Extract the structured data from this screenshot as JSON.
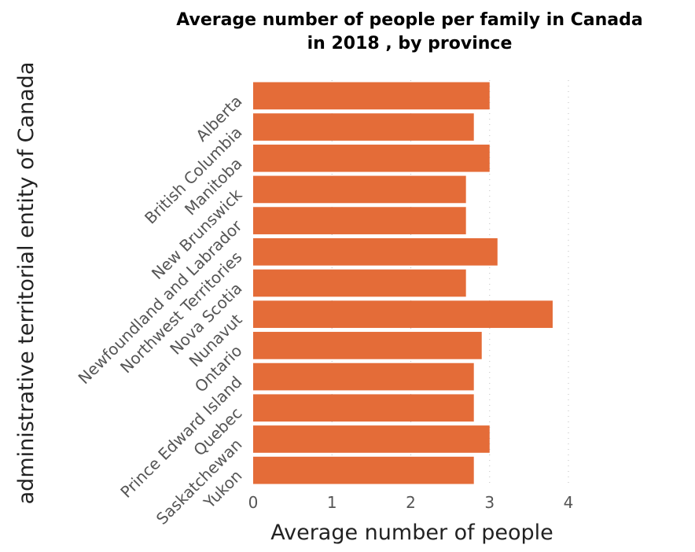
{
  "chart_data": {
    "type": "bar",
    "orientation": "horizontal",
    "title_lines": [
      "Average number of people per family in Canada",
      "in 2018 , by province"
    ],
    "xlabel": "Average number of people",
    "ylabel": "administrative territorial entity of Canada",
    "xlim": [
      0,
      4
    ],
    "xticks": [
      "0",
      "1",
      "2",
      "3",
      "4"
    ],
    "grid": "vertical dotted",
    "bar_color": "#e46c38",
    "categories": [
      "Alberta",
      "British Columbia",
      "Manitoba",
      "New Brunswick",
      "Newfoundland and Labrador",
      "Northwest Territories",
      "Nova Scotia",
      "Nunavut",
      "Ontario",
      "Prince Edward Island",
      "Quebec",
      "Saskatchewan",
      "Yukon"
    ],
    "values": [
      3.0,
      2.8,
      3.0,
      2.7,
      2.7,
      3.1,
      2.7,
      3.8,
      2.9,
      2.8,
      2.8,
      3.0,
      2.8
    ]
  }
}
